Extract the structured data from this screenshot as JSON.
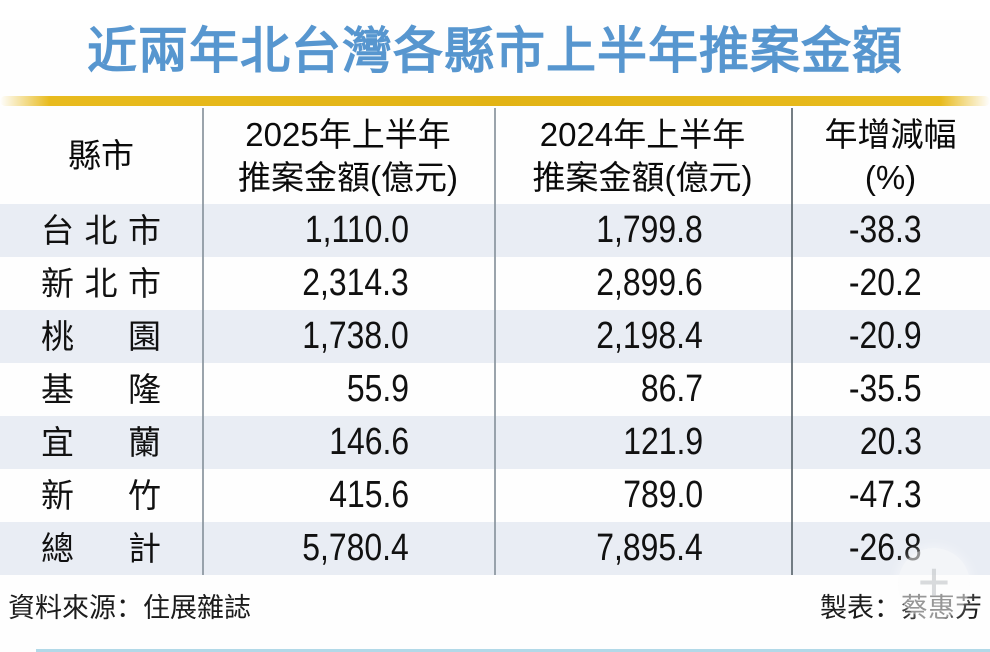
{
  "title": "近兩年北台灣各縣市上半年推案金額",
  "header": {
    "col_city": "縣市",
    "col_2025_line1": "2025年上半年",
    "col_2025_line2": "推案金額(億元)",
    "col_2024_line1": "2024年上半年",
    "col_2024_line2": "推案金額(億元)",
    "col_change_line1": "年增減幅",
    "col_change_line2": "(%)"
  },
  "rows": [
    {
      "city": "台北市",
      "v2025": "1,110.0",
      "v2024": "1,799.8",
      "change": "-38.3"
    },
    {
      "city": "新北市",
      "v2025": "2,314.3",
      "v2024": "2,899.6",
      "change": "-20.2"
    },
    {
      "city": "桃　園",
      "v2025": "1,738.0",
      "v2024": "2,198.4",
      "change": "-20.9"
    },
    {
      "city": "基　隆",
      "v2025": "55.9",
      "v2024": "86.7",
      "change": "-35.5"
    },
    {
      "city": "宜　蘭",
      "v2025": "146.6",
      "v2024": "121.9",
      "change": "20.3"
    },
    {
      "city": "新　竹",
      "v2025": "415.6",
      "v2024": "789.0",
      "change": "-47.3"
    },
    {
      "city": "總　計",
      "v2025": "5,780.4",
      "v2024": "7,895.4",
      "change": "-26.8"
    }
  ],
  "footer": {
    "source": "資料來源：住展雜誌",
    "credit": "製表：蔡惠芳"
  },
  "watermark": {
    "glyph": "+"
  },
  "colors": {
    "title_blue": "#5796cf",
    "accent_gold": "#e2b315",
    "row_stripe_blue": "#e9edf4",
    "divider_gray": "#8a949d",
    "bottom_line_blue": "#b2d9e8"
  },
  "chart_data": {
    "type": "table",
    "title": "近兩年北台灣各縣市上半年推案金額",
    "columns": [
      "縣市",
      "2025年上半年推案金額(億元)",
      "2024年上半年推案金額(億元)",
      "年增減幅(%)"
    ],
    "rows": [
      [
        "台北市",
        1110.0,
        1799.8,
        -38.3
      ],
      [
        "新北市",
        2314.3,
        2899.6,
        -20.2
      ],
      [
        "桃園",
        1738.0,
        2198.4,
        -20.9
      ],
      [
        "基隆",
        55.9,
        86.7,
        -35.5
      ],
      [
        "宜蘭",
        146.6,
        121.9,
        20.3
      ],
      [
        "新竹",
        415.6,
        789.0,
        -47.3
      ],
      [
        "總計",
        5780.4,
        7895.4,
        -26.8
      ]
    ],
    "source": "住展雜誌",
    "credit": "蔡惠芳",
    "layout": {
      "stripe_rows": "odd rows light blue",
      "grid": "vertical column dividers only"
    }
  }
}
